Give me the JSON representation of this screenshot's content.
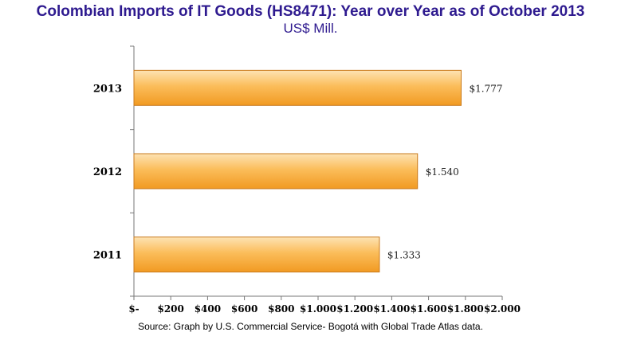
{
  "chart_data": {
    "type": "bar",
    "orientation": "horizontal",
    "title": "Colombian Imports of IT Goods (HS8471): Year over Year as of October 2013",
    "subtitle": "US$ Mill.",
    "categories": [
      "2013",
      "2012",
      "2011"
    ],
    "values": [
      1777,
      1540,
      1333
    ],
    "data_labels": [
      "$1.777",
      "$1.540",
      "$1.333"
    ],
    "x_ticks": [
      "$-",
      "$200",
      "$400",
      "$600",
      "$800",
      "$1.000",
      "$1.200",
      "$1.400",
      "$1.600",
      "$1.800",
      "$2.000"
    ],
    "xlim": [
      0,
      2000
    ],
    "grid": false,
    "legend": "none",
    "bar_color": "#f7ad43"
  },
  "source": "Source: Graph by U.S. Commercial Service- Bogotá with Global Trade Atlas data."
}
